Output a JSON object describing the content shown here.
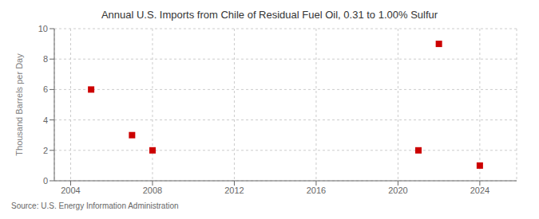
{
  "chart_data": {
    "type": "scatter",
    "title": "Annual U.S. Imports from Chile of Residual Fuel Oil, 0.31 to 1.00% Sulfur",
    "ylabel": "Thousand Barrels per Day",
    "annotation": "Source: U.S. Energy Information Administration",
    "x": [
      2005,
      2007,
      2008,
      2021,
      2022,
      2024
    ],
    "values": [
      6,
      3,
      2,
      2,
      9,
      1
    ],
    "color": "#cc0000",
    "marker": "square",
    "xlim": [
      2003.2,
      2025.8
    ],
    "ylim": [
      0,
      10
    ],
    "xticks": [
      2004,
      2008,
      2012,
      2016,
      2020,
      2024
    ],
    "yticks": [
      0,
      2,
      4,
      6,
      8,
      10
    ],
    "grid": true
  }
}
